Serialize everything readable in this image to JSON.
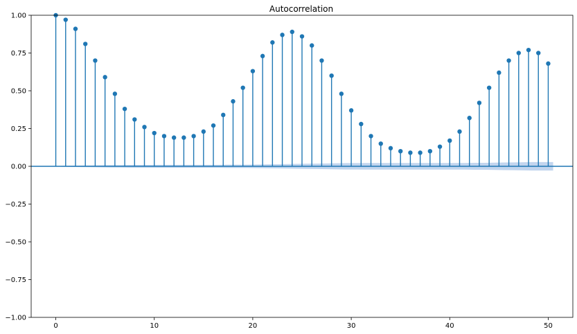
{
  "chart_data": {
    "type": "stem",
    "title": "Autocorrelation",
    "xlabel": "",
    "ylabel": "",
    "xlim": [
      -2.5,
      52.5
    ],
    "ylim": [
      -1.0,
      1.0
    ],
    "x_ticks": [
      0,
      10,
      20,
      30,
      40,
      50
    ],
    "y_ticks": [
      -1.0,
      -0.75,
      -0.5,
      -0.25,
      0.0,
      0.25,
      0.5,
      0.75,
      1.0
    ],
    "x_tick_labels": [
      "0",
      "10",
      "20",
      "30",
      "40",
      "50"
    ],
    "y_tick_labels": [
      "−1.00",
      "−0.75",
      "−0.50",
      "−0.25",
      "0.00",
      "0.25",
      "0.50",
      "0.75",
      "1.00"
    ],
    "grid": false,
    "color": "#1f77b4",
    "confidence_fill_color": "#aec7e8",
    "lags": [
      0,
      1,
      2,
      3,
      4,
      5,
      6,
      7,
      8,
      9,
      10,
      11,
      12,
      13,
      14,
      15,
      16,
      17,
      18,
      19,
      20,
      21,
      22,
      23,
      24,
      25,
      26,
      27,
      28,
      29,
      30,
      31,
      32,
      33,
      34,
      35,
      36,
      37,
      38,
      39,
      40,
      41,
      42,
      43,
      44,
      45,
      46,
      47,
      48,
      49,
      50
    ],
    "values": [
      1.0,
      0.97,
      0.91,
      0.81,
      0.7,
      0.59,
      0.48,
      0.38,
      0.31,
      0.26,
      0.22,
      0.2,
      0.19,
      0.19,
      0.2,
      0.23,
      0.27,
      0.34,
      0.43,
      0.52,
      0.63,
      0.73,
      0.82,
      0.87,
      0.89,
      0.86,
      0.8,
      0.7,
      0.6,
      0.48,
      0.37,
      0.28,
      0.2,
      0.15,
      0.12,
      0.1,
      0.09,
      0.09,
      0.1,
      0.13,
      0.17,
      0.23,
      0.32,
      0.42,
      0.52,
      0.62,
      0.7,
      0.75,
      0.77,
      0.75,
      0.68
    ],
    "confidence_band_upper": [
      0.003,
      0.003,
      0.004,
      0.005,
      0.006,
      0.007,
      0.008,
      0.008,
      0.009,
      0.009,
      0.009,
      0.01,
      0.01,
      0.01,
      0.01,
      0.01,
      0.01,
      0.01,
      0.011,
      0.011,
      0.011,
      0.012,
      0.013,
      0.014,
      0.015,
      0.016,
      0.017,
      0.018,
      0.019,
      0.02,
      0.021,
      0.021,
      0.022,
      0.022,
      0.022,
      0.022,
      0.022,
      0.022,
      0.022,
      0.022,
      0.022,
      0.022,
      0.022,
      0.023,
      0.023,
      0.024,
      0.025,
      0.026,
      0.027,
      0.028,
      0.028
    ]
  }
}
